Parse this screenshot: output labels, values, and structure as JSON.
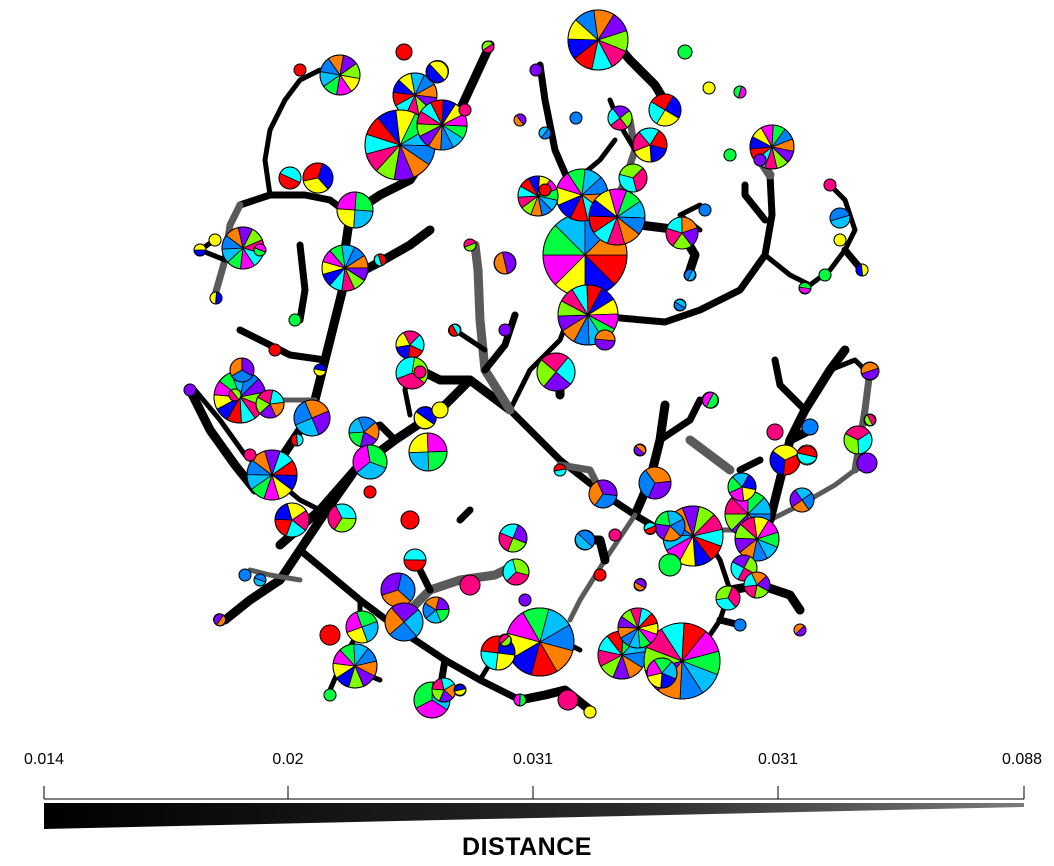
{
  "legend": {
    "title": "DISTANCE",
    "ticks": [
      "0.014",
      "0.02",
      "0.031",
      "0.031",
      "0.088"
    ]
  },
  "colors": {
    "branch_dark": "#000000",
    "branch_light": "#5a5a5a",
    "node_palette": [
      "#ff0000",
      "#ff8000",
      "#ffff00",
      "#80ff00",
      "#00ff40",
      "#00ffff",
      "#0080ff",
      "#0000ff",
      "#8000ff",
      "#ff00ff",
      "#ff0080",
      "#00c0ff"
    ]
  }
}
